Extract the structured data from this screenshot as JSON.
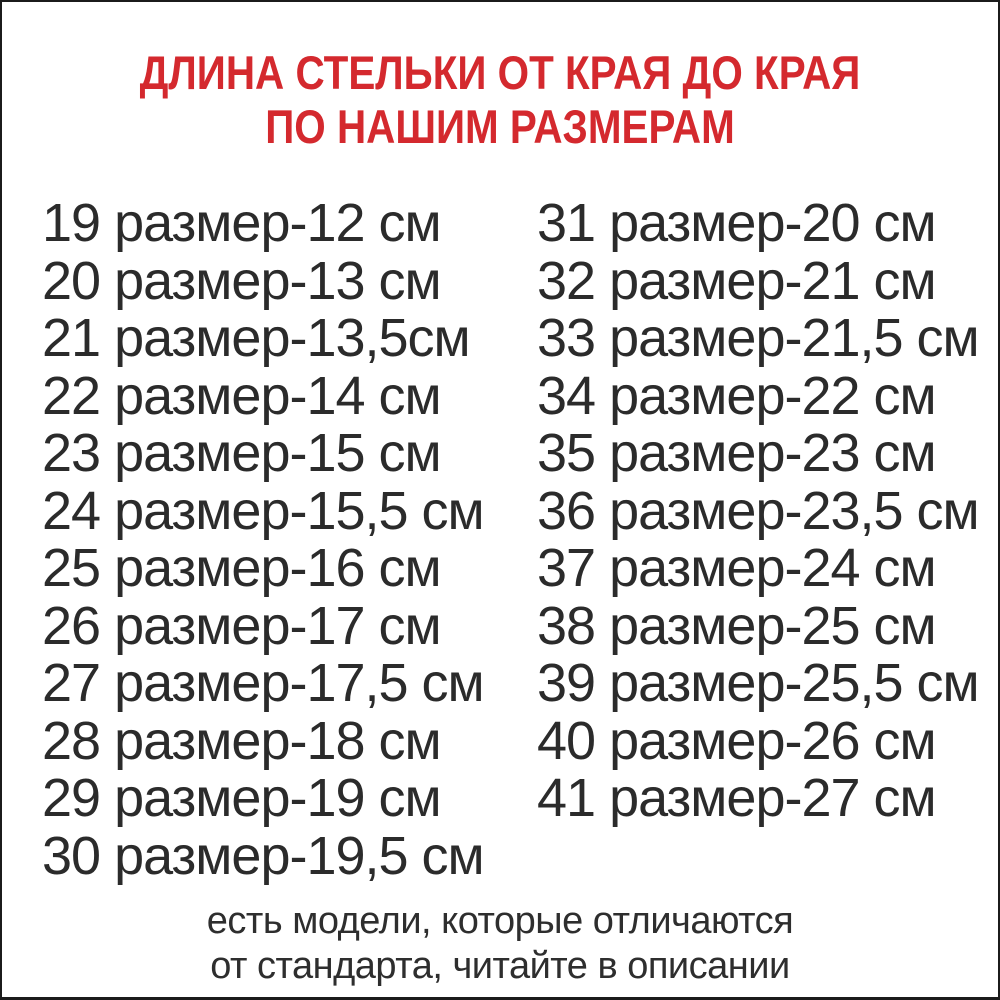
{
  "colors": {
    "title_red": "#d4292e",
    "body_text": "#2b2b2b",
    "border": "#1b1b1b",
    "background": "#ffffff"
  },
  "title": {
    "line1": "ДЛИНА СТЕЛЬКИ ОТ КРАЯ ДО КРАЯ",
    "line2": "ПО НАШИМ РАЗМЕРАМ"
  },
  "size_table": {
    "left_column": [
      "19 размер-12 см",
      "20 размер-13 см",
      "21 размер-13,5см",
      "22 размер-14 см",
      "23 размер-15 см",
      "24 размер-15,5 см",
      "25 размер-16 см",
      "26 размер-17 см",
      "27 размер-17,5 см",
      "28 размер-18 см",
      "29 размер-19 см",
      "30 размер-19,5 см"
    ],
    "right_column": [
      "31 размер-20 см",
      "32 размер-21 см",
      "33 размер-21,5 см",
      "34 размер-22 см",
      "35 размер-23 см",
      "36 размер-23,5 см",
      "37 размер-24 см",
      "38 размер-25 см",
      "39 размер-25,5 см",
      "40 размер-26 см",
      "41 размер-27 см"
    ]
  },
  "footnote": {
    "line1": "есть модели, которые отличаются",
    "line2": "от стандарта, читайте в описании"
  },
  "chart_data": {
    "type": "table",
    "title": "ДЛИНА СТЕЛЬКИ ОТ КРАЯ ДО КРАЯ ПО НАШИМ РАЗМЕРАМ",
    "columns": [
      "размер",
      "длина стельки, см"
    ],
    "rows": [
      [
        19,
        12
      ],
      [
        20,
        13
      ],
      [
        21,
        13.5
      ],
      [
        22,
        14
      ],
      [
        23,
        15
      ],
      [
        24,
        15.5
      ],
      [
        25,
        16
      ],
      [
        26,
        17
      ],
      [
        27,
        17.5
      ],
      [
        28,
        18
      ],
      [
        29,
        19
      ],
      [
        30,
        19.5
      ],
      [
        31,
        20
      ],
      [
        32,
        21
      ],
      [
        33,
        21.5
      ],
      [
        34,
        22
      ],
      [
        35,
        23
      ],
      [
        36,
        23.5
      ],
      [
        37,
        24
      ],
      [
        38,
        25
      ],
      [
        39,
        25.5
      ],
      [
        40,
        26
      ],
      [
        41,
        27
      ]
    ],
    "note": "есть модели, которые отличаются от стандарта, читайте в описании"
  }
}
